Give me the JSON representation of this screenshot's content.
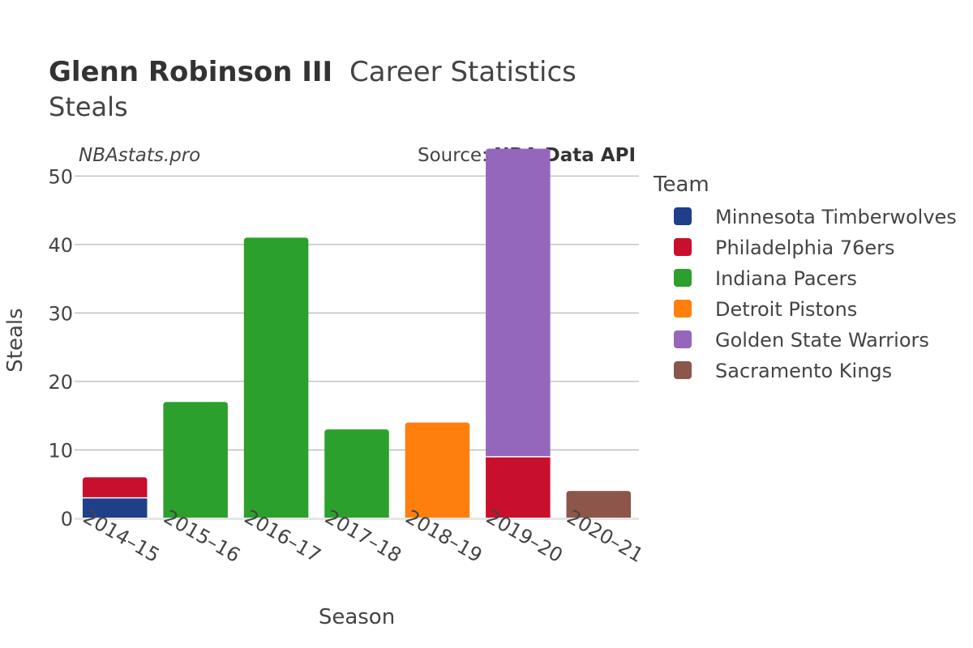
{
  "chart_data": {
    "type": "bar",
    "stacked": true,
    "title_bold": "Glenn Robinson III",
    "title_rest": "Career Statistics",
    "subtitle": "Steals",
    "watermark": "NBAstats.pro",
    "source_prefix": "Source: ",
    "source_name": "NBA Data API",
    "xlabel": "Season",
    "ylabel": "Steals",
    "ylim": [
      0,
      55
    ],
    "yticks": [
      0,
      10,
      20,
      30,
      40,
      50
    ],
    "grid": true,
    "categories": [
      "2014–15",
      "2015–16",
      "2016–17",
      "2017–18",
      "2018–19",
      "2019–20",
      "2020–21"
    ],
    "legend_title": "Team",
    "legend_position": "right",
    "series": [
      {
        "name": "Minnesota Timberwolves",
        "color": "#1f3f8a",
        "values": [
          3,
          0,
          0,
          0,
          0,
          0,
          0
        ]
      },
      {
        "name": "Philadelphia 76ers",
        "color": "#c8102e",
        "values": [
          3,
          0,
          0,
          0,
          0,
          9,
          0
        ]
      },
      {
        "name": "Indiana Pacers",
        "color": "#2ca02c",
        "values": [
          0,
          17,
          41,
          13,
          0,
          0,
          0
        ]
      },
      {
        "name": "Detroit Pistons",
        "color": "#ff7f0e",
        "values": [
          0,
          0,
          0,
          0,
          14,
          0,
          0
        ]
      },
      {
        "name": "Golden State Warriors",
        "color": "#9467bd",
        "values": [
          0,
          0,
          0,
          0,
          0,
          45,
          0
        ]
      },
      {
        "name": "Sacramento Kings",
        "color": "#8c564b",
        "values": [
          0,
          0,
          0,
          0,
          0,
          0,
          4
        ]
      }
    ]
  }
}
